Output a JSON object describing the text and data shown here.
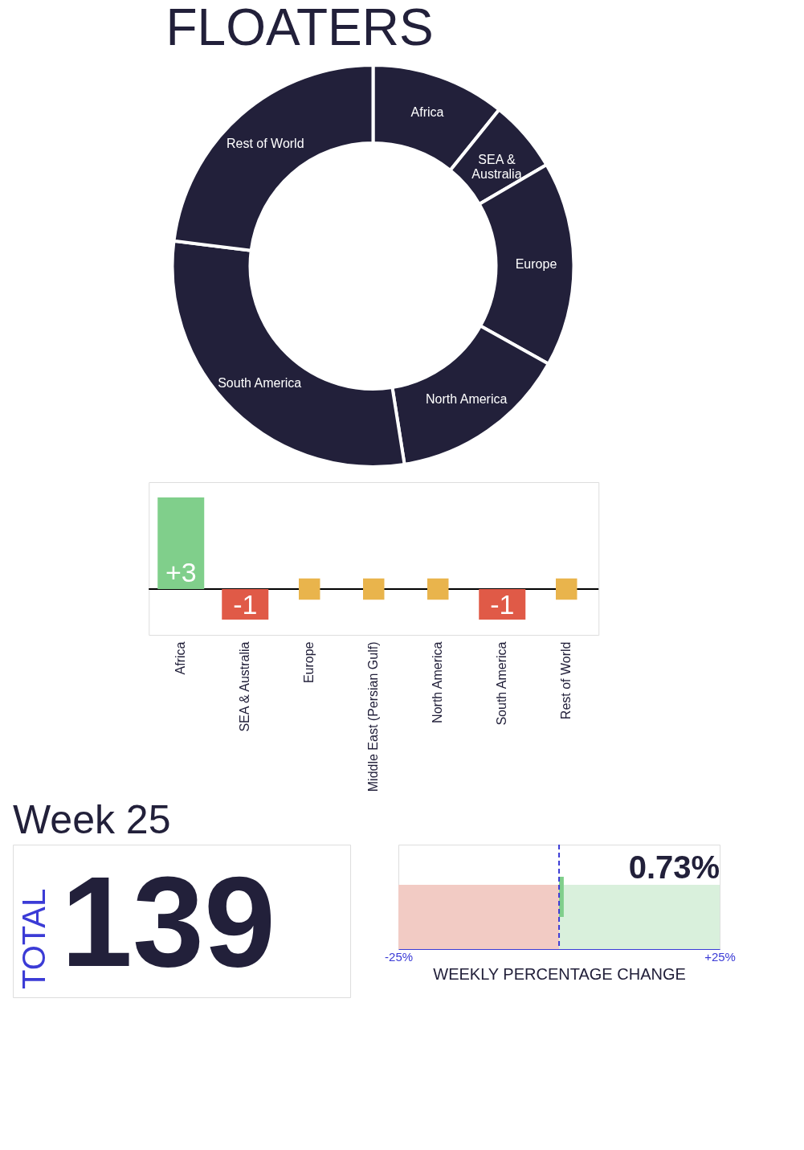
{
  "chart_data": [
    {
      "type": "donut",
      "title": "FLOATERS",
      "categories": [
        "Africa",
        "SEA & Australia",
        "Europe",
        "North America",
        "South America",
        "Rest of World"
      ],
      "values": [
        10.8,
        5.8,
        16.5,
        14.4,
        29.5,
        23.0
      ],
      "colors": [
        "#22203a",
        "#22203a",
        "#22203a",
        "#22203a",
        "#22203a",
        "#22203a"
      ]
    },
    {
      "type": "bar",
      "categories": [
        "Africa",
        "SEA & Australia",
        "Europe",
        "Middle East (Persian Gulf)",
        "North America",
        "South America",
        "Rest of World"
      ],
      "series": [
        {
          "type": "bar",
          "values": [
            3,
            -1,
            null,
            null,
            null,
            -1,
            null
          ],
          "colors": [
            "#80cf8b",
            "#e05a47",
            null,
            null,
            null,
            "#e05a47",
            null
          ],
          "value_labels": [
            "+3",
            "-1",
            null,
            null,
            null,
            "-1",
            null
          ]
        },
        {
          "type": "scatter",
          "marker": "square",
          "color": "#e9b44c",
          "x": [
            "Europe",
            "Middle East (Persian Gulf)",
            "North America",
            "Rest of World"
          ],
          "values": [
            0,
            0,
            0,
            0
          ]
        }
      ]
    },
    {
      "type": "other",
      "title": "Week 25",
      "ylabel": "TOTAL",
      "annotations": [
        "139"
      ]
    },
    {
      "type": "bar",
      "orientation": "horizontal",
      "categories": [
        null
      ],
      "xlabel": "WEEKLY PERCENTAGE CHANGE",
      "values": [
        0.73
      ],
      "colors": [
        "#80cf8b"
      ],
      "value_labels": [
        "0.73%"
      ],
      "xlim": [
        -25,
        25
      ],
      "xticks": [
        {
          "value": -25,
          "label": "-25%"
        },
        {
          "value": 25,
          "label": "+25%"
        }
      ],
      "ref_lines": [
        {
          "axis": "x",
          "value": 0,
          "color": "#3b3bd6",
          "line_style": "dashed"
        }
      ],
      "bands": [
        {
          "axis": "x",
          "from": -25,
          "to": 0,
          "color": "#f2cbc4"
        },
        {
          "axis": "x",
          "from": 0,
          "to": 25,
          "color": "#d9f0dc"
        }
      ]
    }
  ]
}
